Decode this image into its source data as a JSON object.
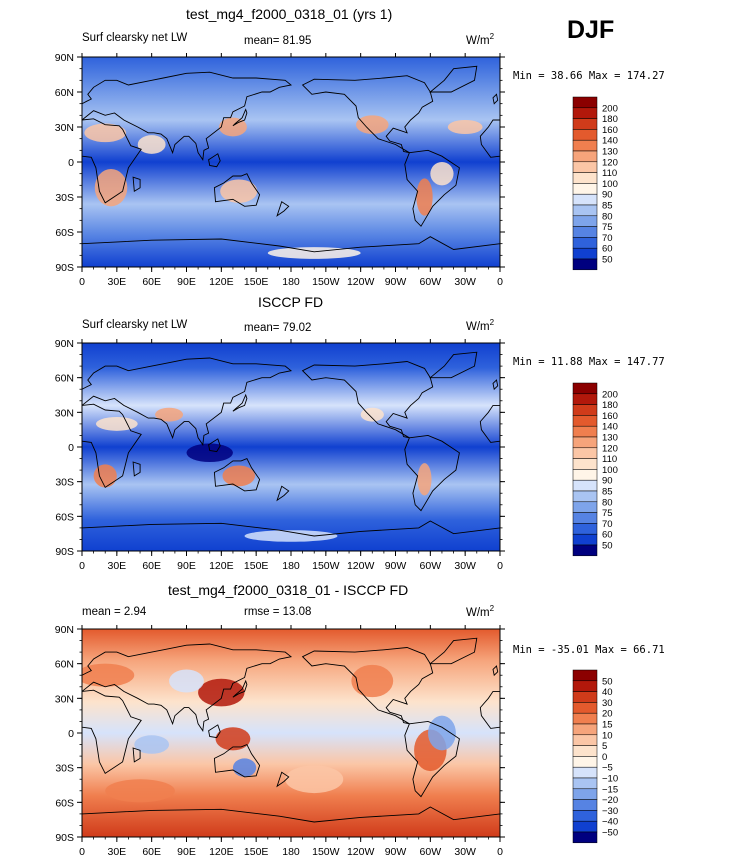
{
  "season": "DJF",
  "chart_data": [
    {
      "type": "heatmap",
      "title": "test_mg4_f2000_0318_01 (yrs 1)",
      "left_label": "Surf clearsky net LW",
      "center_label": "mean=  81.95",
      "units": "W/m",
      "units_sup": "2",
      "stats": "Min =  38.66 Max = 174.27",
      "x_ticks": [
        "0",
        "30E",
        "60E",
        "90E",
        "120E",
        "150E",
        "180",
        "150W",
        "120W",
        "90W",
        "60W",
        "30W",
        "0"
      ],
      "y_ticks": [
        "90N",
        "60N",
        "30N",
        "0",
        "30S",
        "60S",
        "90S"
      ],
      "xlim": [
        0,
        360
      ],
      "ylim": [
        -90,
        90
      ],
      "colorbar_levels": [
        "200",
        "180",
        "160",
        "140",
        "130",
        "120",
        "110",
        "100",
        "90",
        "85",
        "80",
        "75",
        "70",
        "60",
        "50"
      ],
      "colorbar_colors": [
        "#8b0000",
        "#b2180b",
        "#d03b1a",
        "#e35a2d",
        "#f07f4f",
        "#f6a47b",
        "#fbc6a6",
        "#fde3cc",
        "#fff5e8",
        "#d6e3fb",
        "#a9c4f2",
        "#7ea4ea",
        "#5683e3",
        "#2f62dc",
        "#1040d0",
        "#00007f"
      ]
    },
    {
      "type": "heatmap",
      "title": "ISCCP FD",
      "left_label": "Surf clearsky net LW",
      "center_label": "mean=  79.02",
      "units": "W/m",
      "units_sup": "2",
      "stats": "Min =  11.88 Max = 147.77",
      "x_ticks": [
        "0",
        "30E",
        "60E",
        "90E",
        "120E",
        "150E",
        "180",
        "150W",
        "120W",
        "90W",
        "60W",
        "30W",
        "0"
      ],
      "y_ticks": [
        "90N",
        "60N",
        "30N",
        "0",
        "30S",
        "60S",
        "90S"
      ],
      "xlim": [
        0,
        360
      ],
      "ylim": [
        -90,
        90
      ],
      "colorbar_levels": [
        "200",
        "180",
        "160",
        "140",
        "130",
        "120",
        "110",
        "100",
        "90",
        "85",
        "80",
        "75",
        "70",
        "60",
        "50"
      ],
      "colorbar_colors": [
        "#8b0000",
        "#b2180b",
        "#d03b1a",
        "#e35a2d",
        "#f07f4f",
        "#f6a47b",
        "#fbc6a6",
        "#fde3cc",
        "#fff5e8",
        "#d6e3fb",
        "#a9c4f2",
        "#7ea4ea",
        "#5683e3",
        "#2f62dc",
        "#1040d0",
        "#00007f"
      ]
    },
    {
      "type": "heatmap",
      "title": "test_mg4_f2000_0318_01 - ISCCP FD",
      "left_label": "mean =    2.94",
      "center_label": "rmse =  13.08",
      "units": "W/m",
      "units_sup": "2",
      "stats": "Min = -35.01 Max =  66.71",
      "x_ticks": [
        "0",
        "30E",
        "60E",
        "90E",
        "120E",
        "150E",
        "180",
        "150W",
        "120W",
        "90W",
        "60W",
        "30W",
        "0"
      ],
      "y_ticks": [
        "90N",
        "60N",
        "30N",
        "0",
        "30S",
        "60S",
        "90S"
      ],
      "xlim": [
        0,
        360
      ],
      "ylim": [
        -90,
        90
      ],
      "colorbar_levels": [
        "50",
        "40",
        "30",
        "20",
        "15",
        "10",
        "5",
        "0",
        "−5",
        "−10",
        "−15",
        "−20",
        "−30",
        "−40",
        "−50"
      ],
      "colorbar_colors": [
        "#8b0000",
        "#b2180b",
        "#d03b1a",
        "#e35a2d",
        "#f07f4f",
        "#f6a47b",
        "#fbc6a6",
        "#fde3cc",
        "#fff5e8",
        "#d6e3fb",
        "#a9c4f2",
        "#7ea4ea",
        "#5683e3",
        "#2f62dc",
        "#1040d0",
        "#00007f"
      ]
    }
  ]
}
